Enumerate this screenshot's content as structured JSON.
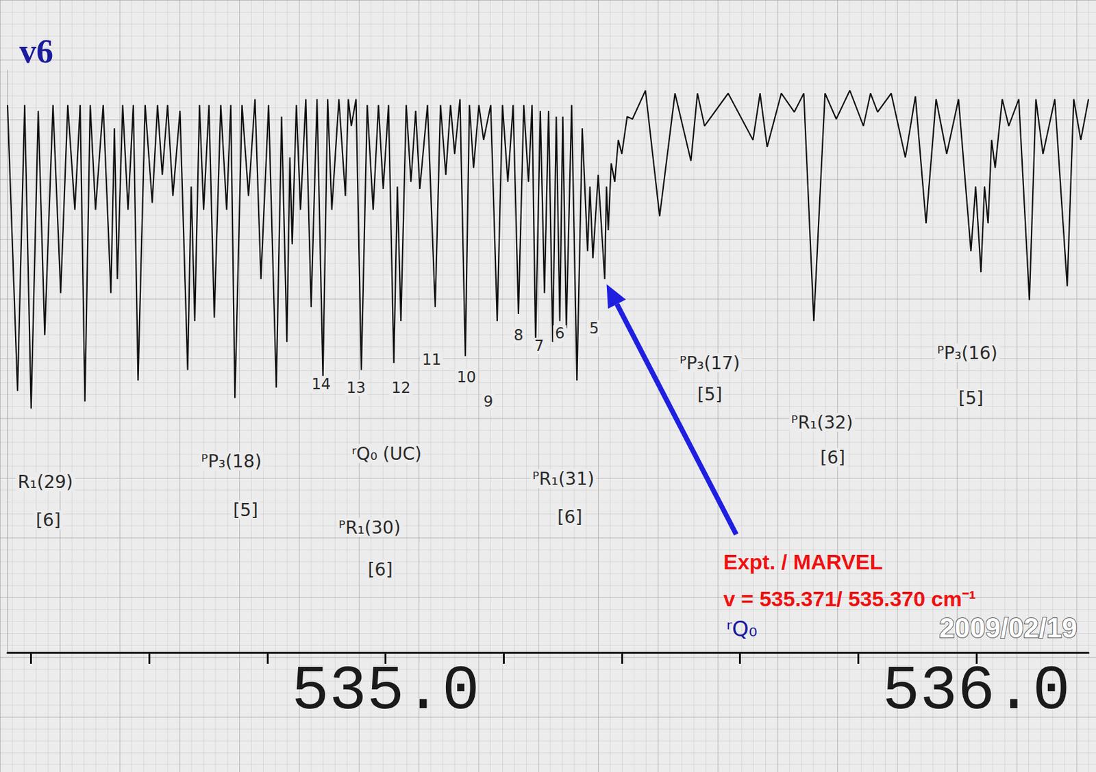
{
  "chart_data": {
    "type": "line",
    "title": "v6",
    "color": "#111111",
    "xlim": [
      534.36,
      536.19
    ],
    "ylim": [
      0,
      100
    ],
    "xticks": [
      {
        "value": 535,
        "label": "535.0"
      },
      {
        "value": 536,
        "label": "536.0"
      }
    ],
    "tick_labels": "x",
    "x": [
      534.36,
      534.377,
      534.389,
      534.4,
      534.412,
      534.423,
      534.437,
      534.45,
      534.462,
      534.474,
      534.483,
      534.491,
      534.5,
      534.509,
      534.522,
      534.535,
      534.541,
      534.546,
      534.555,
      534.564,
      534.573,
      534.581,
      534.593,
      534.605,
      534.614,
      534.622,
      534.631,
      534.64,
      534.652,
      534.665,
      534.671,
      534.677,
      534.685,
      534.692,
      534.701,
      534.71,
      534.721,
      534.731,
      534.738,
      534.745,
      534.757,
      534.768,
      534.779,
      534.789,
      534.802,
      534.815,
      534.824,
      534.833,
      534.838,
      534.842,
      534.849,
      534.856,
      534.865,
      534.874,
      534.884,
      534.894,
      534.902,
      534.909,
      534.921,
      534.932,
      534.937,
      534.942,
      534.95,
      534.959,
      534.969,
      534.979,
      534.988,
      534.996,
      535.005,
      535.014,
      535.02,
      535.026,
      535.035,
      535.043,
      535.051,
      535.058,
      535.071,
      535.084,
      535.093,
      535.102,
      535.11,
      535.117,
      535.126,
      535.135,
      535.142,
      535.149,
      535.158,
      535.166,
      535.178,
      535.189,
      535.198,
      535.207,
      535.216,
      535.225,
      535.234,
      535.242,
      535.248,
      535.254,
      535.262,
      535.269,
      535.276,
      535.283,
      535.289,
      535.295,
      535.3,
      535.306,
      535.315,
      535.324,
      535.333,
      535.342,
      535.346,
      535.351,
      535.36,
      535.371,
      535.374,
      535.377,
      535.382,
      535.388,
      535.394,
      535.4,
      535.409,
      535.418,
      535.44,
      535.464,
      535.49,
      535.517,
      535.528,
      535.54,
      535.58,
      535.622,
      535.634,
      535.646,
      535.67,
      535.692,
      535.708,
      535.725,
      535.744,
      535.763,
      535.786,
      535.809,
      535.821,
      535.833,
      535.856,
      535.88,
      535.897,
      535.915,
      535.932,
      535.95,
      535.97,
      535.991,
      535.999,
      536.008,
      536.014,
      536.02,
      536.026,
      536.032,
      536.044,
      536.055,
      536.072,
      536.09,
      536.101,
      536.113,
      536.133,
      536.154,
      536.165,
      536.177,
      536.19
    ],
    "values": [
      94,
      44.9,
      94,
      41.9,
      93,
      54.5,
      94,
      61.7,
      94,
      76,
      94,
      43.1,
      94,
      76,
      94,
      61.7,
      90,
      64.1,
      94,
      76,
      94,
      46.7,
      94,
      77.2,
      94,
      82,
      94,
      78.4,
      93,
      48.5,
      80,
      56.9,
      94,
      76,
      94,
      57.5,
      94,
      76,
      94,
      43.7,
      94,
      78.4,
      95,
      64.1,
      94,
      45.5,
      92,
      53.3,
      85,
      70.1,
      94,
      76,
      95,
      59.3,
      95,
      47.3,
      95,
      76,
      95,
      78.4,
      95,
      90.4,
      95,
      48.5,
      94,
      76,
      94,
      79.6,
      94,
      49.7,
      80,
      56.9,
      94,
      80.8,
      93,
      79.6,
      94,
      59.3,
      94,
      82,
      94,
      85.6,
      95,
      50.9,
      94,
      83.2,
      94,
      88,
      94,
      56.9,
      94,
      80.8,
      94,
      58.1,
      94,
      80.8,
      94,
      53.3,
      93,
      61.7,
      93,
      53.3,
      92,
      56.9,
      92,
      55.7,
      94,
      46.7,
      90,
      68.9,
      80,
      67.7,
      82,
      64.1,
      80,
      72.5,
      84,
      80.8,
      88,
      85.6,
      92,
      91.6,
      96.5,
      74.9,
      96,
      84.4,
      96,
      90.4,
      96,
      88,
      96,
      86.8,
      96,
      92.8,
      96,
      56.9,
      96,
      91.6,
      96.5,
      90.4,
      96,
      92.8,
      96,
      85,
      95.5,
      73.7,
      95,
      85.6,
      95,
      68.9,
      80,
      65.3,
      80,
      73.7,
      88,
      83.2,
      95,
      90.4,
      95,
      60.5,
      95,
      85.6,
      95,
      62.9,
      95,
      88,
      95
    ],
    "annotations": [
      {
        "text": "R₁(29)",
        "x": 534.418
      },
      {
        "text": "[6]",
        "x": 534.429
      },
      {
        "text": "ᴾP₃(18)",
        "x": 534.739
      },
      {
        "text": "[5]",
        "x": 534.763
      },
      {
        "text": "ʳQ₀ (UC)",
        "x": 535.002
      },
      {
        "text": "ᴾR₁(30)",
        "x": 534.973
      },
      {
        "text": "[6]",
        "x": 534.991
      },
      {
        "text": "ᴾR₁(31)",
        "x": 535.301
      },
      {
        "text": "[6]",
        "x": 535.312
      },
      {
        "text": "ᴾP₃(17)",
        "x": 535.549
      },
      {
        "text": "[5]",
        "x": 535.549
      },
      {
        "text": "ᴾR₁(32)",
        "x": 535.739
      },
      {
        "text": "[6]",
        "x": 535.757
      },
      {
        "text": "ᴾP₃(16)",
        "x": 535.985
      },
      {
        "text": "[5]",
        "x": 535.991
      },
      {
        "text": "14",
        "x": 534.891
      },
      {
        "text": "13",
        "x": 534.95
      },
      {
        "text": "12",
        "x": 535.026
      },
      {
        "text": "11",
        "x": 535.078
      },
      {
        "text": "10",
        "x": 535.137
      },
      {
        "text": "9",
        "x": 535.174
      },
      {
        "text": "8",
        "x": 535.225
      },
      {
        "text": "7",
        "x": 535.26
      },
      {
        "text": "6",
        "x": 535.295
      },
      {
        "text": "5",
        "x": 535.353
      }
    ],
    "callout": {
      "texts": [
        "Expt. / MARVEL",
        "v = 535.371/ 535.370 cm⁻¹"
      ],
      "label": "ʳQ₀",
      "x": 535.371
    },
    "stamp": "2009/02/19"
  }
}
